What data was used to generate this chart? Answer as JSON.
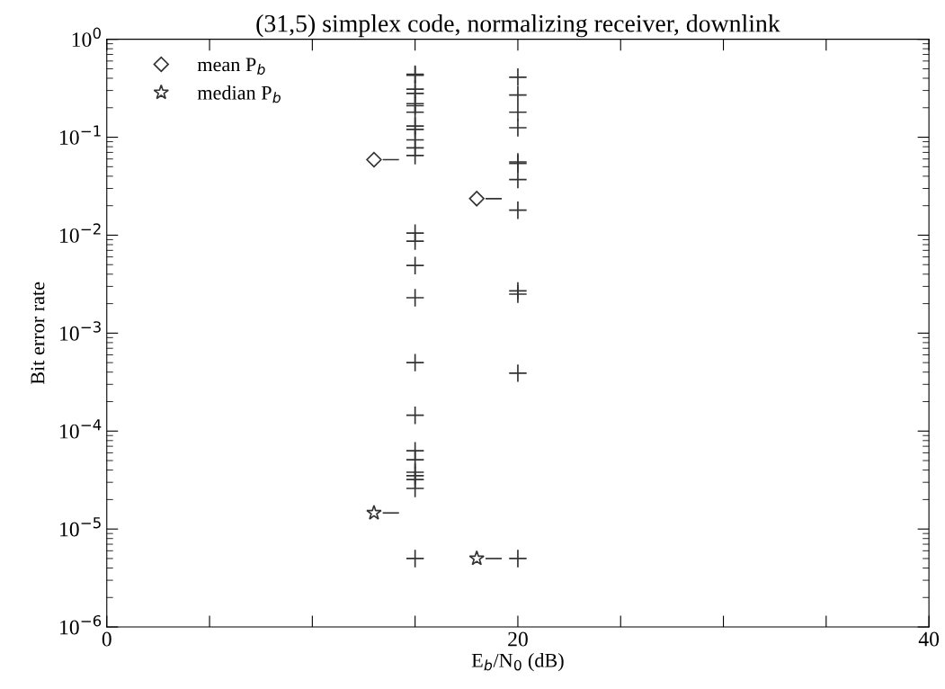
{
  "chart_data": {
    "type": "scatter",
    "title": "(31,5) simplex code, normalizing receiver, downlink",
    "xlabel": "E$_{b}$/N$_{0}$ (dB)",
    "ylabel": "Bit error rate",
    "log": "y",
    "xlim": [
      0,
      40
    ],
    "ylim": [
      1e-06,
      1
    ],
    "xticks": [
      0,
      {
        "value": 5,
        "label": null
      },
      {
        "value": 10,
        "label": null
      },
      {
        "value": 15,
        "label": null
      },
      20,
      {
        "value": 25,
        "label": null
      },
      {
        "value": 30,
        "label": null
      },
      {
        "value": 35,
        "label": null
      },
      40
    ],
    "yticks": [
      {
        "value": 1e-06,
        "label": "10$^{−6}$"
      },
      {
        "value": 1e-05,
        "label": "10$^{−5}$"
      },
      {
        "value": 0.0001,
        "label": "10$^{−4}$"
      },
      {
        "value": 0.001,
        "label": "10$^{−3}$"
      },
      {
        "value": 0.01,
        "label": "10$^{−2}$"
      },
      {
        "value": 0.1,
        "label": "10$^{−1}$"
      },
      {
        "value": 1,
        "label": "10$^{0}$"
      }
    ],
    "grid": false,
    "legend": "top left",
    "series": [
      {
        "marker": "cross",
        "color": "#333333",
        "x": [
          15,
          15,
          15,
          15,
          15,
          15,
          15,
          15,
          15,
          15,
          15,
          15,
          15,
          15,
          15,
          15,
          15,
          15,
          15,
          15,
          15,
          15,
          15,
          15,
          15
        ],
        "values": [
          0.44,
          0.43,
          0.31,
          0.28,
          0.22,
          0.21,
          0.18,
          0.13,
          0.12,
          0.094,
          0.078,
          0.065,
          0.0105,
          0.0087,
          0.0049,
          0.0023,
          0.0005,
          0.000145,
          6.3e-05,
          5.1e-05,
          3.8e-05,
          3.5e-05,
          3.2e-05,
          2.6e-05,
          5e-06
        ]
      },
      {
        "marker": "cross",
        "color": "#333333",
        "x": [
          20,
          20,
          20,
          20,
          20,
          20,
          20,
          20,
          20,
          20,
          20,
          20
        ],
        "values": [
          0.41,
          0.27,
          0.18,
          0.125,
          0.056,
          0.054,
          0.037,
          0.018,
          0.0027,
          0.0025,
          0.00039,
          5e-06
        ]
      },
      {
        "name": "mean P$_{b}$",
        "marker": "diamond",
        "color": "#333333",
        "x": [
          13,
          18
        ],
        "values": [
          0.059,
          0.0236
        ]
      },
      {
        "name": "median P$_{b}$",
        "marker": "star",
        "color": "#333333",
        "x": [
          13,
          18
        ],
        "values": [
          1.46e-05,
          5e-06
        ]
      }
    ]
  }
}
